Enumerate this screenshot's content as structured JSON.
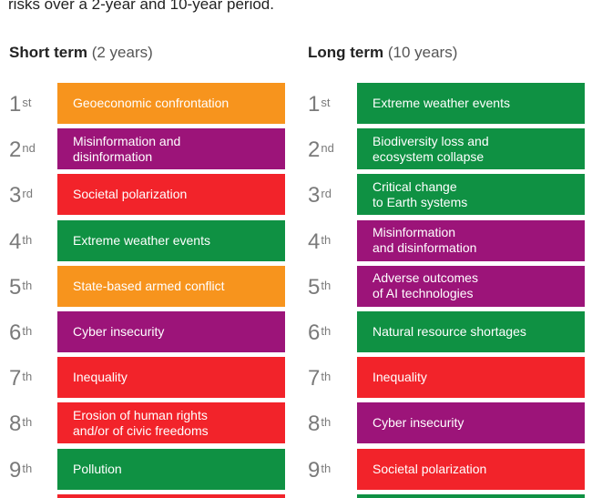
{
  "intro": "risks over a 2-year and 10-year period.",
  "colors": {
    "orange": "#F7941D",
    "purple": "#9C1479",
    "red": "#F2232A",
    "green": "#0F9143"
  },
  "chart_data": {
    "type": "table",
    "columns": [
      {
        "title": "Short term",
        "subtitle": "(2 years)",
        "rows": [
          {
            "rank": "1",
            "suffix": "st",
            "label": "Geoeconomic confrontation",
            "category": "orange"
          },
          {
            "rank": "2",
            "suffix": "nd",
            "label": "Misinformation and\ndisinformation",
            "category": "purple"
          },
          {
            "rank": "3",
            "suffix": "rd",
            "label": "Societal polarization",
            "category": "red"
          },
          {
            "rank": "4",
            "suffix": "th",
            "label": "Extreme weather events",
            "category": "green"
          },
          {
            "rank": "5",
            "suffix": "th",
            "label": "State-based armed conflict",
            "category": "orange"
          },
          {
            "rank": "6",
            "suffix": "th",
            "label": "Cyber insecurity",
            "category": "purple"
          },
          {
            "rank": "7",
            "suffix": "th",
            "label": "Inequality",
            "category": "red"
          },
          {
            "rank": "8",
            "suffix": "th",
            "label": "Erosion of human rights\nand/or of civic freedoms",
            "category": "red"
          },
          {
            "rank": "9",
            "suffix": "th",
            "label": "Pollution",
            "category": "green"
          }
        ]
      },
      {
        "title": "Long term",
        "subtitle": "(10 years)",
        "rows": [
          {
            "rank": "1",
            "suffix": "st",
            "label": "Extreme weather events",
            "category": "green"
          },
          {
            "rank": "2",
            "suffix": "nd",
            "label": "Biodiversity loss and\necosystem collapse",
            "category": "green"
          },
          {
            "rank": "3",
            "suffix": "rd",
            "label": "Critical change\nto Earth systems",
            "category": "green"
          },
          {
            "rank": "4",
            "suffix": "th",
            "label": "Misinformation\nand disinformation",
            "category": "purple"
          },
          {
            "rank": "5",
            "suffix": "th",
            "label": "Adverse outcomes\nof AI technologies",
            "category": "purple"
          },
          {
            "rank": "6",
            "suffix": "th",
            "label": "Natural resource shortages",
            "category": "green"
          },
          {
            "rank": "7",
            "suffix": "th",
            "label": "Inequality",
            "category": "red"
          },
          {
            "rank": "8",
            "suffix": "th",
            "label": "Cyber insecurity",
            "category": "purple"
          },
          {
            "rank": "9",
            "suffix": "th",
            "label": "Societal polarization",
            "category": "red"
          }
        ]
      }
    ],
    "partial_row_colors": [
      "red",
      "green"
    ]
  }
}
